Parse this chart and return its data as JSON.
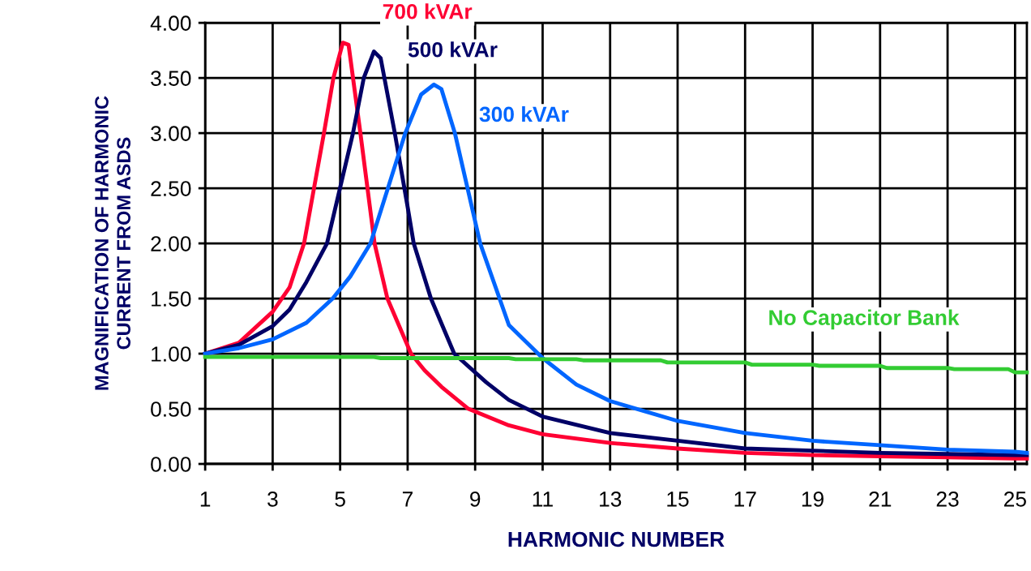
{
  "chart_data": {
    "type": "line",
    "xlabel": "HARMONIC NUMBER",
    "ylabel": "MAGNIFICATION OF HARMONIC\nCURRENT FROM ASDS",
    "xlim": [
      1,
      25.35
    ],
    "ylim": [
      0,
      4
    ],
    "xticks": [
      1,
      3,
      5,
      7,
      9,
      11,
      13,
      15,
      17,
      19,
      21,
      23,
      25
    ],
    "yticks": [
      {
        "value": 0,
        "label": "0.00"
      },
      {
        "value": 0.5,
        "label": "0.50"
      },
      {
        "value": 1,
        "label": "1.00"
      },
      {
        "value": 1.5,
        "label": "1.50"
      },
      {
        "value": 2,
        "label": "2.00"
      },
      {
        "value": 2.5,
        "label": "2.50"
      },
      {
        "value": 3,
        "label": "3.00"
      },
      {
        "value": 3.5,
        "label": "3.50"
      },
      {
        "value": 4,
        "label": "4.00"
      }
    ],
    "grid": true,
    "marker": "none",
    "line_style": "solid",
    "series": [
      {
        "name": "700 kVAr",
        "color": "#ff0033",
        "x": [
          1,
          2,
          3,
          3.5,
          3.93,
          4.52,
          4.8,
          5.08,
          5.25,
          5.6,
          6.02,
          6.4,
          7.1,
          7.5,
          8.0,
          8.8,
          10,
          11,
          13,
          15,
          17,
          19,
          21,
          23,
          25,
          25.35
        ],
        "values": [
          1.0,
          1.1,
          1.38,
          1.6,
          2.0,
          3.0,
          3.5,
          3.82,
          3.8,
          3.0,
          2.0,
          1.5,
          1.0,
          0.85,
          0.7,
          0.5,
          0.35,
          0.27,
          0.19,
          0.14,
          0.1,
          0.08,
          0.07,
          0.06,
          0.05,
          0.05
        ]
      },
      {
        "name": "500 kVAr",
        "color": "#000066",
        "x": [
          1,
          2,
          3,
          3.5,
          4,
          4.61,
          5.38,
          5.7,
          6.0,
          6.2,
          6.62,
          7.0,
          7.18,
          7.69,
          8.38,
          9.33,
          10,
          11,
          13,
          15,
          17,
          19,
          21,
          23,
          25,
          25.35
        ],
        "values": [
          1.0,
          1.08,
          1.25,
          1.4,
          1.65,
          2.0,
          3.0,
          3.5,
          3.74,
          3.68,
          3.0,
          2.33,
          2.0,
          1.5,
          1.0,
          0.74,
          0.58,
          0.43,
          0.28,
          0.21,
          0.14,
          0.12,
          0.1,
          0.09,
          0.08,
          0.08
        ]
      },
      {
        "name": "300 kVAr",
        "color": "#0066ff",
        "x": [
          1,
          2,
          3,
          4,
          4.78,
          5.3,
          5.9,
          6.93,
          7.4,
          7.78,
          8.0,
          8.4,
          9.15,
          10,
          11,
          12,
          13,
          15,
          17,
          19,
          21,
          23,
          25,
          25.35
        ],
        "values": [
          1.0,
          1.05,
          1.13,
          1.28,
          1.5,
          1.7,
          2.0,
          3.0,
          3.35,
          3.44,
          3.4,
          3.0,
          2.0,
          1.26,
          0.96,
          0.72,
          0.57,
          0.39,
          0.28,
          0.21,
          0.17,
          0.13,
          0.11,
          0.1
        ]
      },
      {
        "name": "No Capacitor Bank",
        "color": "#33cc33",
        "x": [
          1,
          6,
          6.2,
          10,
          10.2,
          12,
          12.2,
          14.5,
          14.7,
          17,
          17.2,
          19,
          19.2,
          21,
          21.2,
          23,
          23.2,
          24.8,
          25,
          25.35
        ],
        "values": [
          0.97,
          0.97,
          0.96,
          0.96,
          0.95,
          0.95,
          0.94,
          0.94,
          0.92,
          0.92,
          0.9,
          0.9,
          0.89,
          0.89,
          0.87,
          0.87,
          0.86,
          0.86,
          0.83,
          0.83
        ]
      }
    ]
  }
}
